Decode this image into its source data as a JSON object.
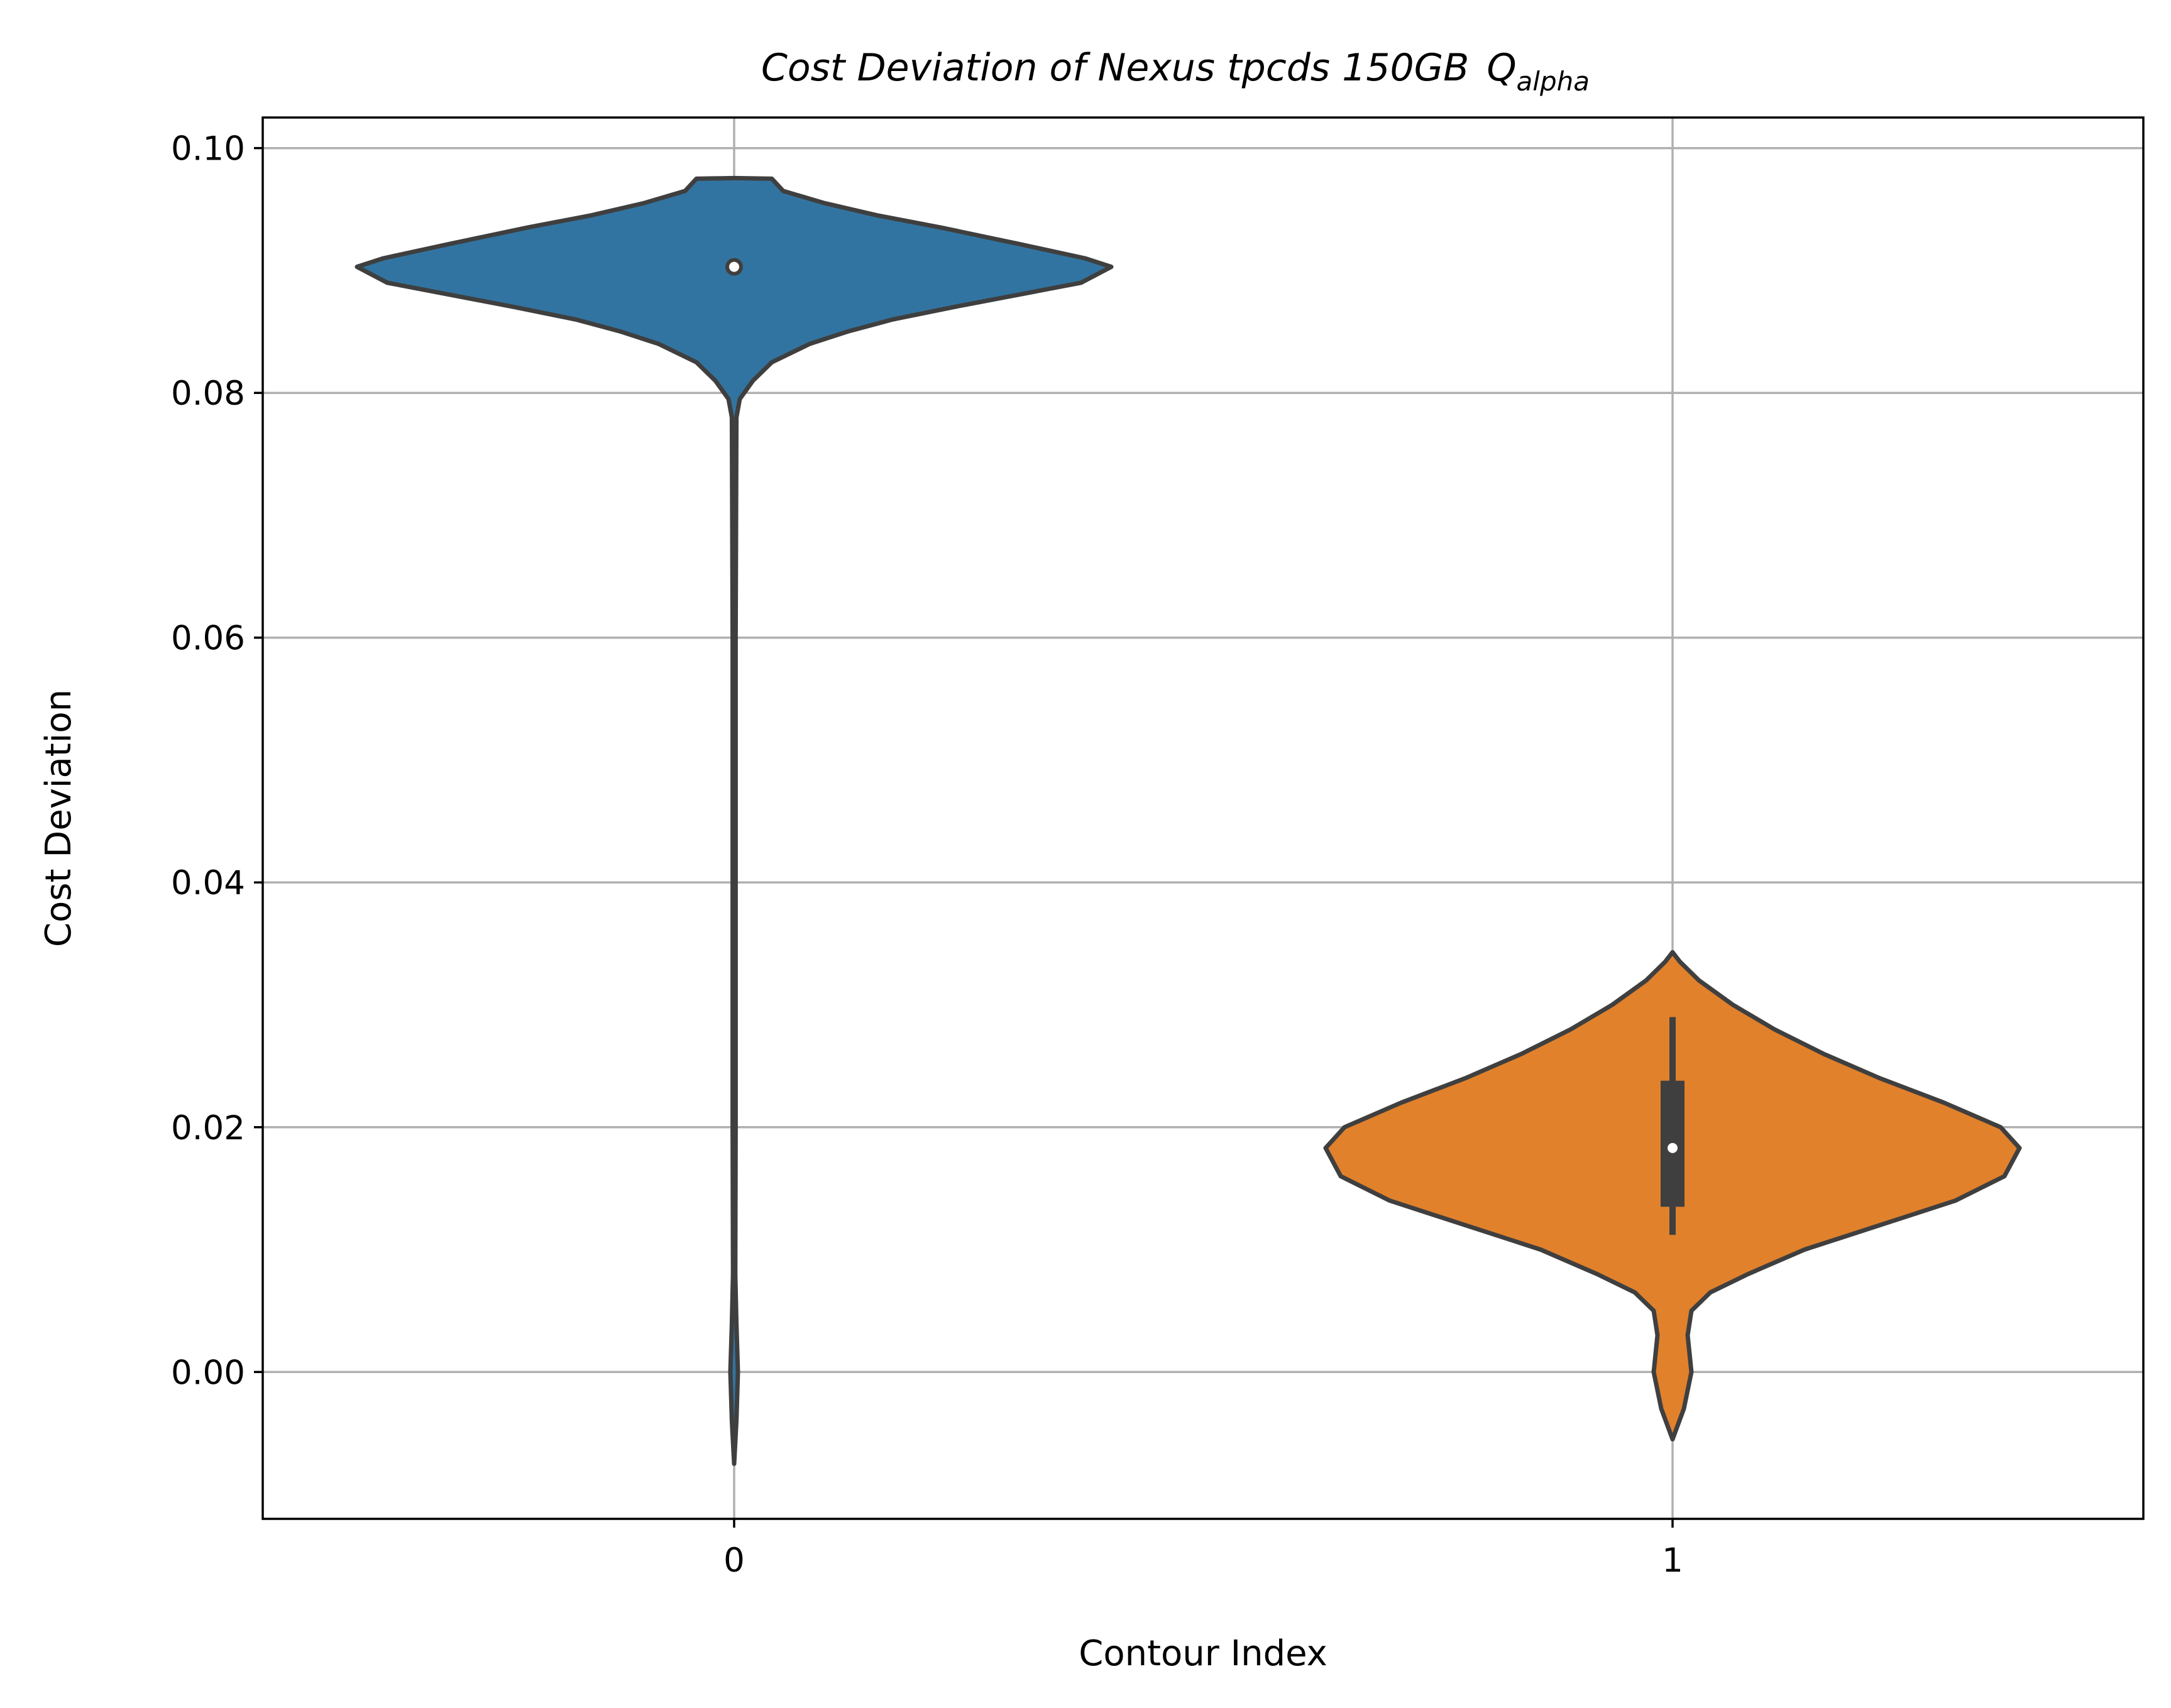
{
  "chart_data": {
    "type": "violin",
    "title": "Cost Deviation of Nexus tpcds  150GB",
    "title_symbol": "Q",
    "title_symbol_subscript": "alpha",
    "xlabel": "Contour Index",
    "ylabel": "Cost Deviation",
    "categories": [
      "0",
      "1"
    ],
    "ylim": [
      -0.012,
      0.1025
    ],
    "yticks": [
      0.0,
      0.02,
      0.04,
      0.06,
      0.08,
      0.1
    ],
    "ytick_labels": [
      "0.00",
      "0.02",
      "0.04",
      "0.06",
      "0.08",
      "0.10"
    ],
    "grid": true,
    "series": [
      {
        "category": "0",
        "color": "#3274a1",
        "median": 0.0903,
        "q1": 0.0903,
        "q3": 0.0903,
        "whisker_low": 0.0903,
        "whisker_high": 0.0903,
        "density_profile": [
          [
            -0.0075,
            0.0
          ],
          [
            -0.004,
            0.006
          ],
          [
            0.0,
            0.01
          ],
          [
            0.004,
            0.006
          ],
          [
            0.008,
            0.003
          ],
          [
            0.02,
            0.004
          ],
          [
            0.04,
            0.004
          ],
          [
            0.06,
            0.004
          ],
          [
            0.078,
            0.006
          ],
          [
            0.0795,
            0.015
          ],
          [
            0.081,
            0.05
          ],
          [
            0.0825,
            0.1
          ],
          [
            0.084,
            0.2
          ],
          [
            0.085,
            0.3
          ],
          [
            0.086,
            0.42
          ],
          [
            0.087,
            0.58
          ],
          [
            0.088,
            0.75
          ],
          [
            0.089,
            0.92
          ],
          [
            0.0903,
            1.0
          ],
          [
            0.091,
            0.93
          ],
          [
            0.0922,
            0.75
          ],
          [
            0.0935,
            0.55
          ],
          [
            0.0945,
            0.38
          ],
          [
            0.0955,
            0.24
          ],
          [
            0.0965,
            0.13
          ],
          [
            0.0975,
            0.1
          ],
          [
            0.09755,
            0.0
          ]
        ]
      },
      {
        "category": "1",
        "color": "#e1812c",
        "median": 0.0183,
        "q1": 0.0135,
        "q3": 0.0238,
        "whisker_low": 0.0112,
        "whisker_high": 0.029,
        "density_profile": [
          [
            -0.0055,
            0.0
          ],
          [
            -0.003,
            0.03
          ],
          [
            0.0,
            0.05
          ],
          [
            0.003,
            0.04
          ],
          [
            0.005,
            0.05
          ],
          [
            0.0065,
            0.1
          ],
          [
            0.008,
            0.2
          ],
          [
            0.01,
            0.35
          ],
          [
            0.012,
            0.55
          ],
          [
            0.014,
            0.75
          ],
          [
            0.016,
            0.88
          ],
          [
            0.0183,
            0.92
          ],
          [
            0.02,
            0.87
          ],
          [
            0.022,
            0.72
          ],
          [
            0.024,
            0.55
          ],
          [
            0.026,
            0.4
          ],
          [
            0.028,
            0.27
          ],
          [
            0.03,
            0.16
          ],
          [
            0.032,
            0.07
          ],
          [
            0.0335,
            0.02
          ],
          [
            0.0343,
            0.0
          ]
        ]
      }
    ]
  }
}
